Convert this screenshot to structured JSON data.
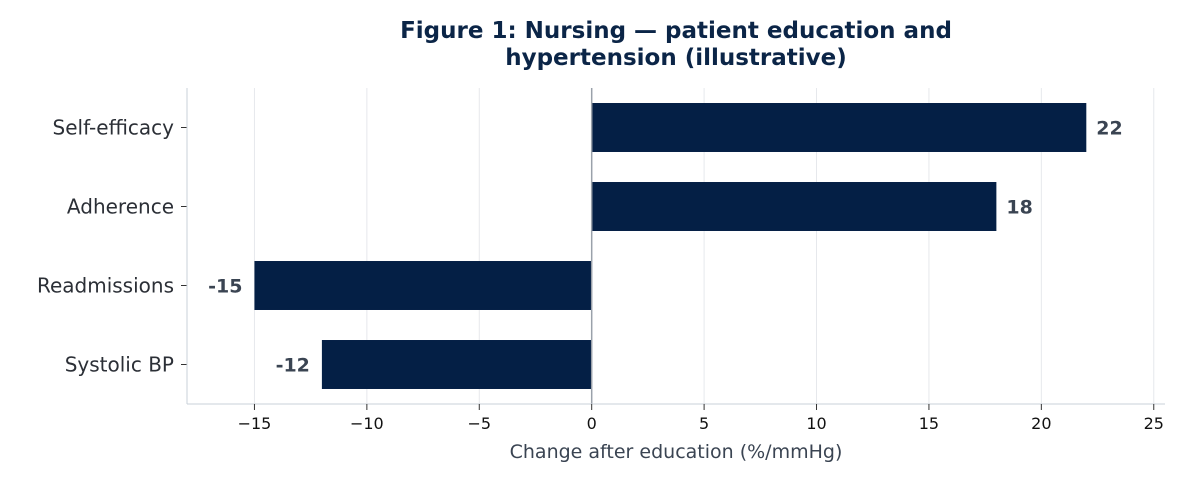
{
  "chart_data": {
    "type": "bar",
    "orientation": "horizontal",
    "title_lines": [
      "Figure 1: Nursing — patient education and",
      "hypertension (illustrative)"
    ],
    "xlabel": "Change after education (%/mmHg)",
    "ylabel": "",
    "categories": [
      "Self-efficacy",
      "Adherence",
      "Readmissions",
      "Systolic BP"
    ],
    "values": [
      22,
      18,
      -15,
      -12
    ],
    "value_labels": [
      "22",
      "18",
      "-15",
      "-12"
    ],
    "xlim": [
      -18,
      25.5
    ],
    "xticks": [
      -15,
      -10,
      -5,
      0,
      5,
      10,
      15,
      20,
      25
    ],
    "xtick_labels": [
      "−15",
      "−10",
      "−5",
      "0",
      "5",
      "10",
      "15",
      "20",
      "25"
    ],
    "grid": "vertical",
    "bar_color": "#041f45",
    "zero_line_color": "#9aa1aa"
  }
}
